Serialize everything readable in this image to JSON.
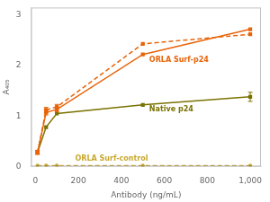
{
  "chart_data": {
    "type": "line",
    "x": [
      10,
      50,
      100,
      500,
      1000
    ],
    "series": [
      {
        "color": "#E8640A",
        "values": [
          0.28,
          1.12,
          1.18,
          2.43,
          2.62
        ],
        "errors": [
          0.04,
          0.05,
          0.05,
          0.0,
          0.0
        ],
        "marker": "square",
        "line_style": "dashed"
      },
      {
        "color": "#E8640A",
        "values": [
          0.28,
          1.07,
          1.13,
          2.22,
          2.72
        ],
        "errors": [
          0.04,
          0.05,
          0.05,
          0.0,
          0.0
        ],
        "marker": "square",
        "line_style": "solid"
      },
      {
        "color": "#7A7200",
        "values": [
          0.28,
          0.78,
          1.05,
          1.22,
          1.38
        ],
        "errors": [
          0.0,
          0.0,
          0.0,
          0.0,
          0.09
        ],
        "marker": "square",
        "line_style": "solid"
      },
      {
        "color": "#C8A830",
        "values": [
          0.02,
          0.02,
          0.02,
          0.02,
          0.02
        ],
        "errors": [
          0.0,
          0.0,
          0.0,
          0.0,
          0.0
        ],
        "marker": "circle",
        "line_style": "dashed"
      }
    ],
    "annotations": [
      {
        "text": "ORLA Surf-p24",
        "x": 530,
        "y": 2.08,
        "color": "#E8640A"
      },
      {
        "text": "Native p24",
        "x": 530,
        "y": 1.1,
        "color": "#7A7200"
      },
      {
        "text": "ORLA Surf-control",
        "x": 185,
        "y": 0.12,
        "color": "#C8A830"
      }
    ],
    "xlabel": "Antibody (ng/mL)",
    "ylabel": "A₄₀₅",
    "xlim": [
      -20,
      1050
    ],
    "ylim": [
      0,
      3.15
    ],
    "xticks": [
      0,
      200,
      400,
      600,
      800,
      {
        "value": 1000,
        "label": "1,000"
      }
    ],
    "yticks": [
      0,
      1,
      2,
      3
    ],
    "grid": false,
    "legend": false
  }
}
